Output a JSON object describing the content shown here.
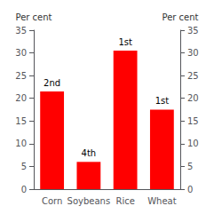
{
  "chart_data": {
    "type": "bar",
    "categories": [
      "Corn",
      "Soybeans",
      "Rice",
      "Wheat"
    ],
    "values": [
      21.5,
      6.0,
      30.5,
      17.5
    ],
    "annotations": [
      "2nd",
      "4th",
      "1st",
      "1st"
    ],
    "color": "#ff0000",
    "ylabel": "Per cent",
    "y2label": "Per cent",
    "ylim": [
      0,
      35
    ],
    "yticks": [
      0,
      5,
      10,
      15,
      20,
      25,
      30,
      35
    ],
    "y2lim": [
      0,
      35
    ],
    "y2ticks": [
      0,
      5,
      10,
      15,
      20,
      25,
      30,
      35
    ],
    "grid": false
  }
}
